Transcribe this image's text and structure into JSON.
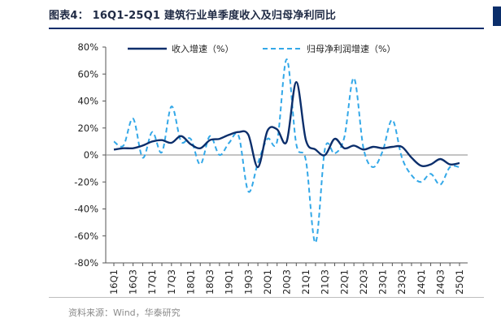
{
  "header": {
    "title": "图表4：  16Q1-25Q1 建筑行业单季度收入及归母净利同比"
  },
  "footer": {
    "source": "资料来源：Wind，华泰研究"
  },
  "colors": {
    "revenue": "#0b2e6b",
    "profit": "#33a8e8",
    "axis": "#555555",
    "zero_line": "#888888"
  },
  "chart_data": {
    "type": "line",
    "ylim": [
      -80,
      80
    ],
    "yticks": [
      -80,
      -60,
      -40,
      -20,
      0,
      20,
      40,
      60,
      80
    ],
    "ytick_labels": [
      "-80%",
      "-60%",
      "-40%",
      "-20%",
      "0%",
      "20%",
      "40%",
      "60%",
      "80%"
    ],
    "categories": [
      "16Q1",
      "16Q2",
      "16Q3",
      "16Q4",
      "17Q1",
      "17Q2",
      "17Q3",
      "17Q4",
      "18Q1",
      "18Q2",
      "18Q3",
      "18Q4",
      "19Q1",
      "19Q2",
      "19Q3",
      "19Q4",
      "20Q1",
      "20Q2",
      "20Q3",
      "20Q4",
      "21Q1",
      "21Q2",
      "21Q3",
      "21Q4",
      "22Q1",
      "22Q2",
      "22Q3",
      "22Q4",
      "23Q1",
      "23Q2",
      "23Q3",
      "23Q4",
      "24Q1",
      "24Q2",
      "24Q3",
      "24Q4",
      "25Q1"
    ],
    "tick_labels": [
      "16Q1",
      "16Q3",
      "17Q1",
      "17Q3",
      "18Q1",
      "18Q3",
      "19Q1",
      "19Q3",
      "20Q1",
      "20Q3",
      "21Q1",
      "21Q3",
      "22Q1",
      "22Q3",
      "23Q1",
      "23Q3",
      "24Q1",
      "24Q3",
      "25Q1"
    ],
    "tick_label_indices": [
      0,
      2,
      4,
      6,
      8,
      10,
      12,
      14,
      16,
      18,
      20,
      22,
      24,
      26,
      28,
      30,
      32,
      34,
      36
    ],
    "series": [
      {
        "name": "收入增速（%）",
        "style": "solid",
        "values": [
          4,
          5,
          5,
          7,
          10,
          11,
          9,
          14,
          8,
          5,
          11,
          12,
          15,
          17,
          15,
          -9,
          18,
          19,
          10,
          54,
          11,
          4,
          0,
          12,
          5,
          7,
          4,
          6,
          5,
          6,
          6,
          -2,
          -8,
          -7,
          -3,
          -7,
          -6
        ]
      },
      {
        "name": "归母净利润增速（%）",
        "style": "dashed",
        "values": [
          10,
          7,
          27,
          -2,
          17,
          2,
          36,
          10,
          12,
          -7,
          14,
          0,
          9,
          14,
          -27,
          -6,
          12,
          10,
          71,
          8,
          -4,
          -65,
          5,
          1,
          13,
          57,
          5,
          -9,
          3,
          26,
          -2,
          -15,
          -20,
          -14,
          -22,
          -9,
          -9
        ]
      }
    ]
  }
}
